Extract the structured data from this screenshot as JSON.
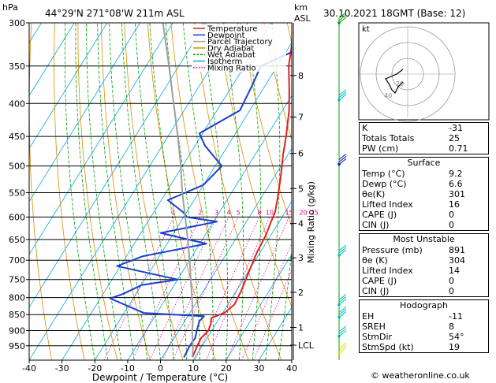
{
  "header": {
    "hpa_label": "hPa",
    "location": "44°29'N  271°08'W  211m  ASL",
    "km_label": "km",
    "asl_label": "ASL",
    "datetime": "30.10.2021  18GMT  (Base: 12)"
  },
  "chart_data": {
    "type": "line",
    "title": "44°29'N  271°08'W  211m  ASL",
    "xlabel": "Dewpoint / Temperature (°C)",
    "ylabel": "hPa",
    "mixing_ratio_axis_label": "Mixing Ratio (g/kg)",
    "xlim": [
      -40,
      40
    ],
    "ylim": [
      300,
      1000
    ],
    "x_ticks": [
      "-40",
      "-30",
      "-20",
      "-10",
      "0",
      "10",
      "20",
      "30",
      "40"
    ],
    "pressure_levels": [
      "300",
      "350",
      "400",
      "450",
      "500",
      "550",
      "600",
      "650",
      "700",
      "750",
      "800",
      "850",
      "900",
      "950"
    ],
    "km_ticks": [
      {
        "label": "8",
        "p": 362
      },
      {
        "label": "7",
        "p": 420
      },
      {
        "label": "6",
        "p": 478
      },
      {
        "label": "5",
        "p": 542
      },
      {
        "label": "4",
        "p": 614
      },
      {
        "label": "3",
        "p": 694
      },
      {
        "label": "2",
        "p": 785
      },
      {
        "label": "1",
        "p": 890
      },
      {
        "label": "LCL",
        "p": 948
      }
    ],
    "mixing_ratio_labels": [
      "1",
      "2",
      "3",
      "4",
      "5",
      "8",
      "10",
      "15",
      "20",
      "25"
    ],
    "mixing_ratio_values": [
      1,
      2,
      3,
      4,
      5,
      8,
      10,
      15,
      20,
      25
    ],
    "legend": [
      {
        "label": "Temperature",
        "color": "#e02020"
      },
      {
        "label": "Dewpoint",
        "color": "#1a3fd0"
      },
      {
        "label": "Parcel Trajectory",
        "color": "#a0a0a0"
      },
      {
        "label": "Dry Adiabat",
        "color": "#e08a00"
      },
      {
        "label": "Wet Adiabat",
        "color": "#00a000"
      },
      {
        "label": "Isotherm",
        "color": "#00a8e0"
      },
      {
        "label": "Mixing Ratio",
        "color": "#e000a0"
      }
    ],
    "series": [
      {
        "name": "Temperature",
        "points": [
          [
            9.2,
            990
          ],
          [
            8.5,
            950
          ],
          [
            8.2,
            925
          ],
          [
            9,
            900
          ],
          [
            8.5,
            880
          ],
          [
            7.5,
            860
          ],
          [
            10.5,
            845
          ],
          [
            12,
            820
          ],
          [
            11.5,
            780
          ],
          [
            10,
            720
          ],
          [
            9,
            680
          ],
          [
            8.5,
            640
          ],
          [
            7.5,
            610
          ],
          [
            7,
            590
          ],
          [
            5,
            560
          ],
          [
            2,
            520
          ],
          [
            -1.5,
            480
          ],
          [
            -4,
            450
          ],
          [
            -8,
            410
          ],
          [
            -12,
            380
          ],
          [
            -16.5,
            350
          ],
          [
            -19.5,
            325
          ],
          [
            -21.5,
            312
          ],
          [
            -23.5,
            300
          ]
        ]
      },
      {
        "name": "Dewpoint",
        "points": [
          [
            6.6,
            990
          ],
          [
            6.2,
            950
          ],
          [
            6.4,
            925
          ],
          [
            5.5,
            900
          ],
          [
            4.5,
            870
          ],
          [
            5,
            855
          ],
          [
            -14,
            845
          ],
          [
            -20,
            825
          ],
          [
            -27,
            802
          ],
          [
            -24,
            790
          ],
          [
            -20,
            765
          ],
          [
            -10,
            750
          ],
          [
            -31,
            715
          ],
          [
            -25,
            690
          ],
          [
            -8,
            660
          ],
          [
            -24,
            635
          ],
          [
            -9,
            610
          ],
          [
            -19,
            600
          ],
          [
            -21,
            590
          ],
          [
            -28,
            565
          ],
          [
            -20,
            535
          ],
          [
            -18,
            500
          ],
          [
            -27,
            465
          ],
          [
            -31,
            445
          ],
          [
            -23,
            410
          ],
          [
            -24,
            375
          ],
          [
            -25,
            350
          ],
          [
            -17,
            330
          ],
          [
            -15,
            300
          ]
        ]
      },
      {
        "name": "Parcel Trajectory",
        "points": [
          [
            9.2,
            990
          ],
          [
            7.2,
            950
          ],
          [
            5.6,
            925
          ],
          [
            4.1,
            900
          ],
          [
            2.5,
            870
          ],
          [
            1.2,
            850
          ],
          [
            -2.2,
            800
          ],
          [
            -6,
            750
          ],
          [
            -10,
            700
          ],
          [
            -14.5,
            650
          ],
          [
            -19.5,
            600
          ],
          [
            -25,
            550
          ],
          [
            -30.5,
            500
          ],
          [
            -37,
            450
          ],
          [
            -44.5,
            400
          ],
          [
            -53,
            350
          ],
          [
            -63,
            300
          ]
        ]
      }
    ]
  },
  "wind_barbs": [
    {
      "p": 300,
      "color": "#00a000"
    },
    {
      "p": 395,
      "color": "#00c0c0"
    },
    {
      "p": 497,
      "color": "#2020c0"
    },
    {
      "p": 688,
      "color": "#00c0c0"
    },
    {
      "p": 820,
      "color": "#00c0c0"
    },
    {
      "p": 858,
      "color": "#00c0c0"
    },
    {
      "p": 918,
      "color": "#00c0c0"
    },
    {
      "p": 975,
      "color": "#e0e000"
    }
  ],
  "hodograph": {
    "label": "kt",
    "ring_labels": [
      "20",
      "40"
    ],
    "trace_kt": [
      [
        -3,
        -5
      ],
      [
        -6,
        -8
      ],
      [
        -8,
        -12
      ],
      [
        -10,
        -10
      ],
      [
        -12,
        -6
      ],
      [
        -14,
        -3
      ],
      [
        -7,
        0
      ],
      [
        -3,
        3
      ]
    ]
  },
  "indices": [
    {
      "label": "K",
      "value": "-31"
    },
    {
      "label": "Totals Totals",
      "value": "25"
    },
    {
      "label": "PW (cm)",
      "value": "0.71"
    }
  ],
  "surface": {
    "title": "Surface",
    "rows": [
      {
        "label": "Temp (°C)",
        "value": "9.2"
      },
      {
        "label": "Dewp (°C)",
        "value": "6.6"
      },
      {
        "label": "θe(K)",
        "value": "301"
      },
      {
        "label": "Lifted Index",
        "value": "16"
      },
      {
        "label": "CAPE (J)",
        "value": "0"
      },
      {
        "label": "CIN (J)",
        "value": "0"
      }
    ]
  },
  "most_unstable": {
    "title": "Most Unstable",
    "rows": [
      {
        "label": "Pressure (mb)",
        "value": "891"
      },
      {
        "label": "θe (K)",
        "value": "304"
      },
      {
        "label": "Lifted Index",
        "value": "14"
      },
      {
        "label": "CAPE (J)",
        "value": "0"
      },
      {
        "label": "CIN (J)",
        "value": "0"
      }
    ]
  },
  "hodograph_stats": {
    "title": "Hodograph",
    "rows": [
      {
        "label": "EH",
        "value": "-11"
      },
      {
        "label": "SREH",
        "value": "8"
      },
      {
        "label": "StmDir",
        "value": "54°"
      },
      {
        "label": "StmSpd (kt)",
        "value": "19"
      }
    ]
  },
  "copyright": "© weatheronline.co.uk"
}
